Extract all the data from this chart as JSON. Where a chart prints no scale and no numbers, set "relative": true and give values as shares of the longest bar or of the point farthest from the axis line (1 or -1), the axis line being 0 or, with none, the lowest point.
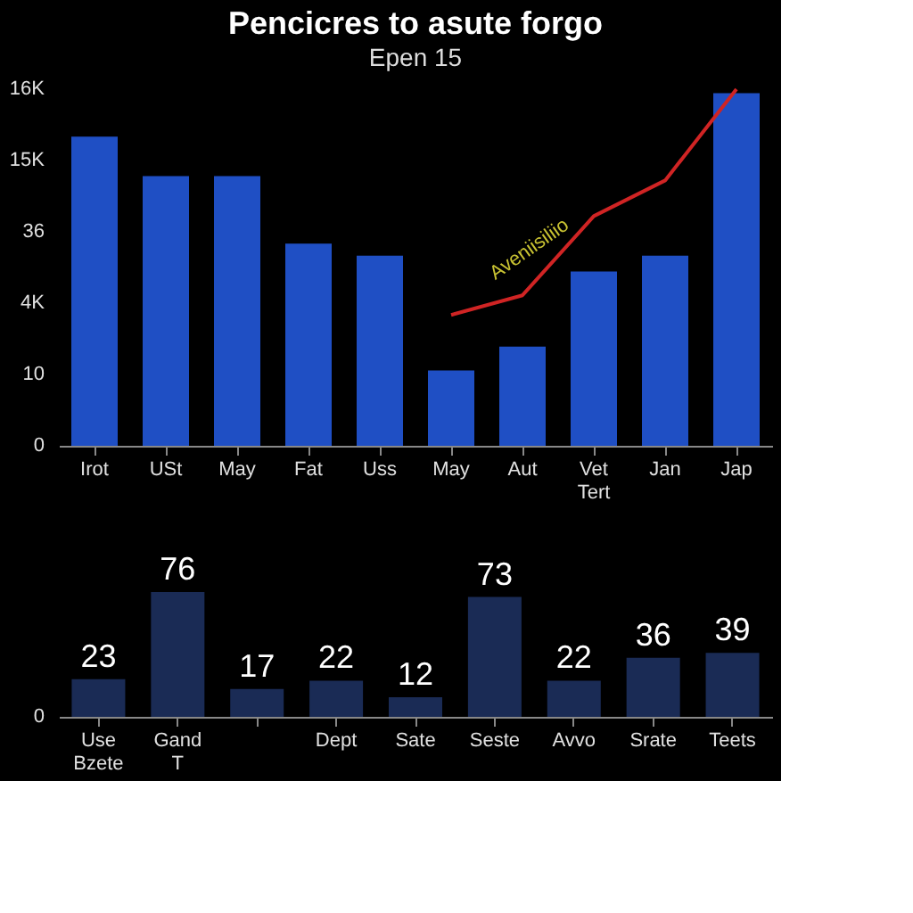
{
  "chart_data": [
    {
      "type": "bar",
      "title": "Pencicres to asute forgo",
      "subtitle": "Epen 15",
      "categories": [
        "Irot",
        "USt",
        "May",
        "Fat",
        "Uss",
        "May",
        "Aut",
        "Vet\nTert",
        "Jan",
        "Jap"
      ],
      "relative": true,
      "series": [
        {
          "type": "bar",
          "color": "#1f4fc4",
          "values": [
            0.867,
            0.756,
            0.756,
            0.567,
            0.533,
            0.211,
            0.278,
            0.489,
            0.533,
            0.989
          ]
        },
        {
          "type": "line",
          "color": "#d02424",
          "values": [
            null,
            null,
            null,
            null,
            null,
            0.367,
            0.422,
            0.644,
            0.744,
            1.0
          ]
        }
      ],
      "annotations": [
        "16K",
        "15K",
        "36",
        "4K",
        "10",
        "0",
        "Aveniisiliio"
      ]
    },
    {
      "type": "bar",
      "categories": [
        "Use\nBzete",
        "Gand\nT",
        null,
        "Dept",
        "Sate",
        "Seste",
        "Avvo",
        "Srate",
        "Teets"
      ],
      "values": [
        23,
        76,
        17,
        22,
        12,
        73,
        22,
        36,
        39
      ],
      "color": "#1a2b55",
      "annotations": [
        "0"
      ],
      "data_labels": true
    }
  ]
}
